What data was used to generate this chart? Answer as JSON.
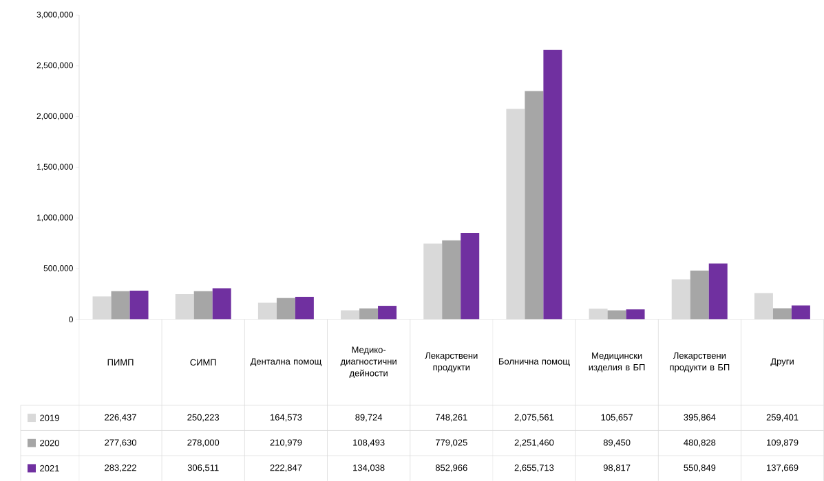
{
  "chart_data": {
    "type": "bar",
    "categories": [
      "ПИМП",
      "СИМП",
      "Дентална помощ",
      "Медико-диагностични дейности",
      "Лекарствени продукти",
      "Болнична помощ",
      "Медицински изделия в БП",
      "Лекарствени продукти в БП",
      "Други"
    ],
    "series": [
      {
        "name": "2019",
        "color": "#d9d9d9",
        "values": [
          226437,
          250223,
          164573,
          89724,
          748261,
          2075561,
          105657,
          395864,
          259401
        ],
        "value_labels": [
          "226,437",
          "250,223",
          "164,573",
          "89,724",
          "748,261",
          "2,075,561",
          "105,657",
          "395,864",
          "259,401"
        ]
      },
      {
        "name": "2020",
        "color": "#a6a6a6",
        "values": [
          277630,
          278000,
          210979,
          108493,
          779025,
          2251460,
          89450,
          480828,
          109879
        ],
        "value_labels": [
          "277,630",
          "278,000",
          "210,979",
          "108,493",
          "779,025",
          "2,251,460",
          "89,450",
          "480,828",
          "109,879"
        ]
      },
      {
        "name": "2021",
        "color": "#7030a0",
        "values": [
          283222,
          306511,
          222847,
          134038,
          852966,
          2655713,
          98817,
          550849,
          137669
        ],
        "value_labels": [
          "283,222",
          "306,511",
          "222,847",
          "134,038",
          "852,966",
          "2,655,713",
          "98,817",
          "550,849",
          "137,669"
        ]
      }
    ],
    "ylim": [
      0,
      3000000
    ],
    "yticks": [
      {
        "value": 0,
        "label": "0"
      },
      {
        "value": 500000,
        "label": "500,000"
      },
      {
        "value": 1000000,
        "label": "1,000,000"
      },
      {
        "value": 1500000,
        "label": "1,500,000"
      },
      {
        "value": 2000000,
        "label": "2,000,000"
      },
      {
        "value": 2500000,
        "label": "2,500,000"
      },
      {
        "value": 3000000,
        "label": "3,000,000"
      }
    ],
    "legend": "bottom"
  }
}
